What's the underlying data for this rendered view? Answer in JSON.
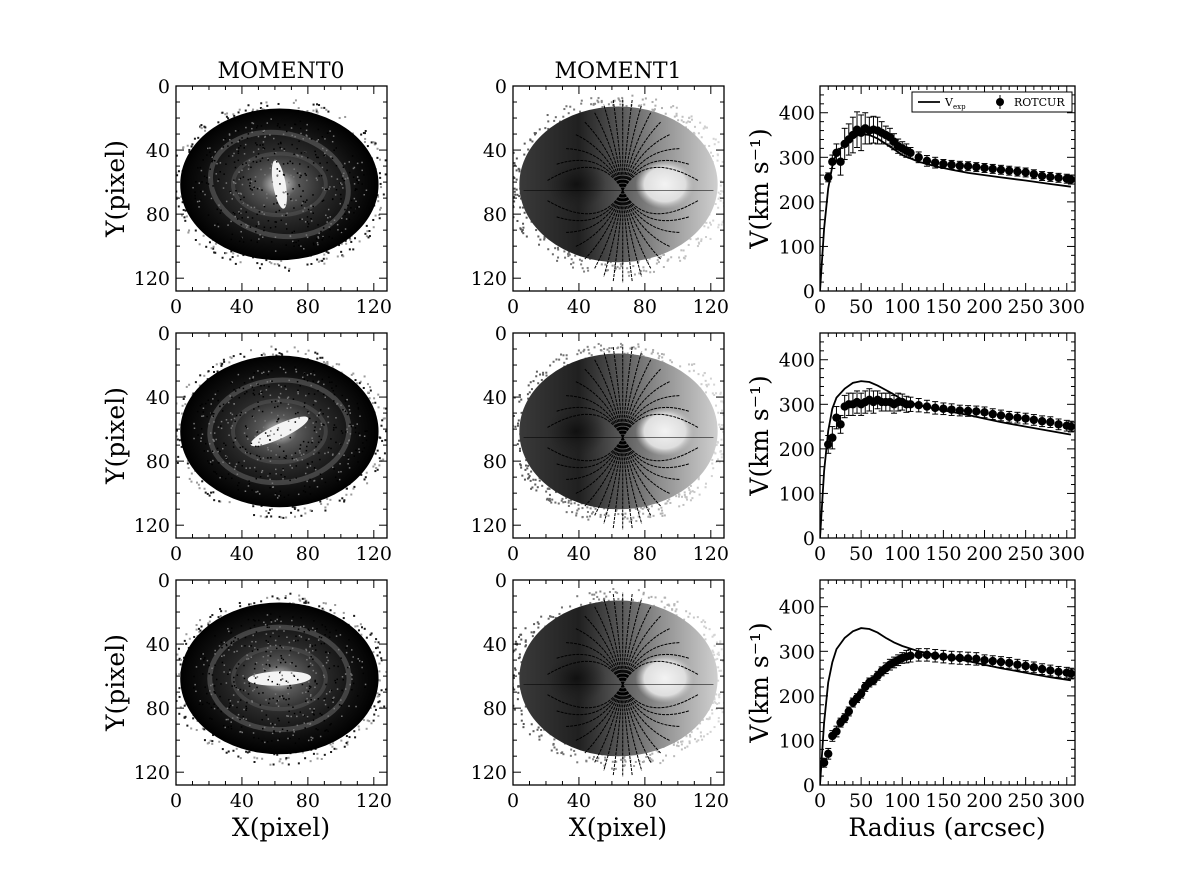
{
  "chart_data": {
    "type": "figure-grid",
    "columns": [
      {
        "title": "MOMENT0",
        "kind": "image",
        "xlabel": "X(pixel)",
        "ylabel": "Y(pixel)"
      },
      {
        "title": "MOMENT1",
        "kind": "image",
        "xlabel": "X(pixel)",
        "ylabel": ""
      },
      {
        "title": "",
        "kind": "line",
        "xlabel": "Radius (arcsec)",
        "ylabel": "V(km s⁻¹)"
      }
    ],
    "image_axes": {
      "xlim": [
        0,
        128
      ],
      "ylim": [
        128,
        0
      ],
      "xticks": [
        "0",
        "40",
        "80",
        "120"
      ],
      "yticks": [
        "0",
        "40",
        "80",
        "120"
      ],
      "ytick_values": [
        0,
        40,
        80,
        120
      ]
    },
    "rotation_axes": {
      "xlim": [
        0,
        310
      ],
      "ylim": [
        0,
        460
      ],
      "xticks": [
        "0",
        "50",
        "100",
        "150",
        "200",
        "250",
        "300"
      ],
      "xtick_values": [
        0,
        50,
        100,
        150,
        200,
        250,
        300
      ],
      "yticks": [
        "0",
        "100",
        "200",
        "300",
        "400"
      ],
      "ytick_values": [
        0,
        100,
        200,
        300,
        400
      ]
    },
    "legend": {
      "line_label": "V",
      "line_sub": "exp",
      "points_label": "ROTCUR",
      "placement": "top-right"
    },
    "galaxies": [
      {
        "name": "row1",
        "bar_angle_deg": 80,
        "v_exp": {
          "x": [
            0,
            5,
            10,
            15,
            20,
            30,
            40,
            50,
            60,
            70,
            80,
            90,
            100,
            120,
            140,
            160,
            180,
            200,
            220,
            250,
            280,
            305
          ],
          "y": [
            0,
            140,
            230,
            280,
            310,
            330,
            345,
            352,
            350,
            342,
            330,
            318,
            305,
            290,
            280,
            272,
            265,
            260,
            255,
            248,
            240,
            234
          ]
        },
        "rotcur": {
          "x": [
            10,
            15,
            20,
            25,
            30,
            35,
            40,
            45,
            50,
            55,
            60,
            65,
            70,
            75,
            80,
            85,
            90,
            95,
            100,
            105,
            110,
            120,
            130,
            140,
            150,
            160,
            170,
            180,
            190,
            200,
            210,
            220,
            230,
            240,
            250,
            260,
            270,
            280,
            290,
            300,
            305
          ],
          "y": [
            255,
            290,
            310,
            290,
            330,
            340,
            350,
            362,
            355,
            365,
            360,
            362,
            360,
            355,
            350,
            345,
            335,
            325,
            320,
            315,
            310,
            300,
            292,
            288,
            285,
            283,
            281,
            280,
            278,
            276,
            274,
            272,
            270,
            268,
            266,
            262,
            258,
            256,
            254,
            252,
            250
          ],
          "err": [
            10,
            15,
            20,
            30,
            35,
            35,
            40,
            40,
            40,
            35,
            30,
            30,
            30,
            25,
            20,
            20,
            18,
            16,
            15,
            15,
            12,
            12,
            12,
            12,
            10,
            10,
            10,
            10,
            10,
            10,
            10,
            10,
            10,
            10,
            10,
            10,
            10,
            10,
            10,
            10,
            10
          ]
        }
      },
      {
        "name": "row2",
        "bar_angle_deg": -25,
        "v_exp": {
          "x": [
            0,
            5,
            10,
            15,
            20,
            30,
            40,
            50,
            60,
            70,
            80,
            90,
            100,
            120,
            140,
            160,
            180,
            200,
            220,
            250,
            280,
            305
          ],
          "y": [
            0,
            150,
            240,
            290,
            315,
            335,
            348,
            352,
            350,
            342,
            332,
            322,
            310,
            298,
            290,
            283,
            276,
            268,
            260,
            250,
            240,
            232
          ]
        },
        "rotcur": {
          "x": [
            10,
            15,
            20,
            25,
            30,
            35,
            40,
            45,
            50,
            55,
            60,
            65,
            70,
            75,
            80,
            85,
            90,
            95,
            100,
            105,
            110,
            120,
            130,
            140,
            150,
            160,
            170,
            180,
            190,
            200,
            210,
            220,
            230,
            240,
            250,
            260,
            270,
            280,
            290,
            300,
            305
          ],
          "y": [
            210,
            225,
            270,
            255,
            295,
            300,
            300,
            305,
            300,
            305,
            310,
            305,
            310,
            305,
            305,
            305,
            300,
            305,
            305,
            300,
            300,
            298,
            295,
            292,
            290,
            288,
            286,
            285,
            284,
            282,
            278,
            275,
            272,
            270,
            268,
            265,
            262,
            260,
            255,
            252,
            250
          ],
          "err": [
            20,
            25,
            25,
            20,
            25,
            25,
            25,
            25,
            25,
            25,
            25,
            25,
            20,
            20,
            20,
            20,
            20,
            20,
            18,
            18,
            16,
            15,
            14,
            14,
            13,
            13,
            12,
            12,
            12,
            12,
            12,
            12,
            12,
            12,
            12,
            12,
            12,
            12,
            12,
            12,
            12
          ]
        }
      },
      {
        "name": "row3",
        "bar_angle_deg": -2,
        "v_exp": {
          "x": [
            0,
            5,
            10,
            15,
            20,
            30,
            40,
            50,
            60,
            70,
            80,
            90,
            100,
            120,
            140,
            160,
            180,
            200,
            220,
            250,
            280,
            305
          ],
          "y": [
            0,
            140,
            230,
            275,
            305,
            330,
            345,
            352,
            350,
            342,
            330,
            320,
            312,
            300,
            292,
            285,
            278,
            270,
            262,
            252,
            242,
            235
          ]
        },
        "rotcur": {
          "x": [
            5,
            10,
            15,
            20,
            25,
            30,
            35,
            40,
            45,
            50,
            55,
            60,
            65,
            70,
            75,
            80,
            85,
            90,
            95,
            100,
            105,
            110,
            120,
            130,
            140,
            150,
            160,
            170,
            180,
            190,
            200,
            210,
            220,
            230,
            240,
            250,
            260,
            270,
            280,
            290,
            300,
            305
          ],
          "y": [
            50,
            70,
            110,
            120,
            140,
            150,
            165,
            185,
            195,
            205,
            220,
            230,
            235,
            245,
            255,
            262,
            270,
            275,
            280,
            285,
            288,
            290,
            292,
            292,
            290,
            288,
            286,
            285,
            284,
            283,
            280,
            278,
            276,
            274,
            270,
            267,
            264,
            260,
            257,
            254,
            252,
            250
          ],
          "err": [
            10,
            12,
            12,
            12,
            10,
            10,
            10,
            10,
            10,
            10,
            10,
            10,
            10,
            10,
            10,
            12,
            12,
            12,
            12,
            12,
            14,
            14,
            14,
            14,
            14,
            14,
            14,
            14,
            14,
            14,
            12,
            12,
            12,
            12,
            12,
            12,
            12,
            12,
            12,
            12,
            12,
            12
          ]
        }
      }
    ]
  }
}
